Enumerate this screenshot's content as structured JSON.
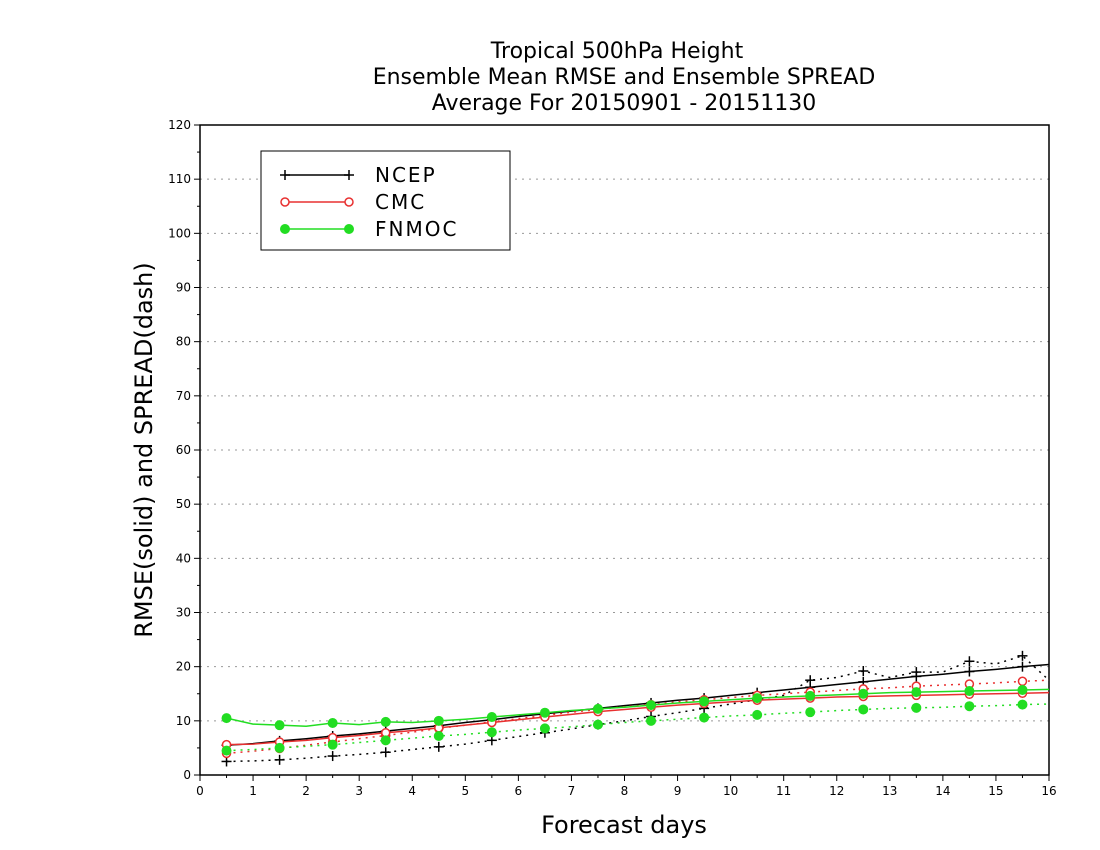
{
  "chart_data": {
    "type": "line",
    "title_lines": [
      "Tropical 500hPa Height",
      "Ensemble Mean RMSE and Ensemble SPREAD",
      "Average For 20150901 - 20151130"
    ],
    "xlabel": "Forecast days",
    "ylabel": "RMSE(solid) and SPREAD(dash)",
    "xlim": [
      0,
      16
    ],
    "ylim": [
      0,
      120
    ],
    "xticks": [
      "0",
      "1",
      "2",
      "3",
      "4",
      "5",
      "6",
      "7",
      "8",
      "9",
      "10",
      "11",
      "12",
      "13",
      "14",
      "15",
      "16"
    ],
    "yticks": [
      "0",
      "10",
      "20",
      "30",
      "40",
      "50",
      "60",
      "70",
      "80",
      "90",
      "100",
      "110",
      "120"
    ],
    "grid": true,
    "legend_placement": "top-left",
    "x": [
      0.5,
      1,
      1.5,
      2,
      2.5,
      3,
      3.5,
      4,
      4.5,
      5,
      5.5,
      6,
      6.5,
      7,
      7.5,
      8,
      8.5,
      9,
      9.5,
      10,
      10.5,
      11,
      11.5,
      12,
      12.5,
      13,
      13.5,
      14,
      14.5,
      15,
      15.5,
      16
    ],
    "series": [
      {
        "name": "NCEP",
        "color": "#000000",
        "marker": "plus",
        "rmse": [
          5.5,
          5.8,
          6.3,
          6.7,
          7.2,
          7.6,
          8.1,
          8.6,
          9.1,
          9.7,
          10.2,
          10.8,
          11.3,
          11.8,
          12.3,
          12.8,
          13.3,
          13.8,
          14.2,
          14.7,
          15.2,
          15.7,
          16.2,
          16.7,
          17.2,
          17.7,
          18.2,
          18.6,
          19.1,
          19.5,
          20.0,
          20.4
        ],
        "spread": [
          2.5,
          2.6,
          2.8,
          3.1,
          3.5,
          3.8,
          4.2,
          4.7,
          5.2,
          5.7,
          6.4,
          7.1,
          7.8,
          8.5,
          9.3,
          10.0,
          10.8,
          11.5,
          12.3,
          13.1,
          13.9,
          14.7,
          17.5,
          18.0,
          19.2,
          18.0,
          19.0,
          19.0,
          21.0,
          20.5,
          22.0,
          17.5
        ]
      },
      {
        "name": "CMC",
        "color": "#e83030",
        "marker": "open-circle",
        "rmse": [
          5.6,
          5.7,
          6.1,
          6.4,
          6.9,
          7.3,
          7.8,
          8.2,
          8.7,
          9.2,
          9.7,
          10.2,
          10.7,
          11.2,
          11.7,
          12.1,
          12.5,
          12.9,
          13.2,
          13.5,
          13.8,
          14.0,
          14.2,
          14.4,
          14.5,
          14.6,
          14.7,
          14.8,
          14.9,
          15.0,
          15.1,
          15.2
        ],
        "spread": [
          4.0,
          4.4,
          4.9,
          5.5,
          6.1,
          6.7,
          7.3,
          7.9,
          8.6,
          9.2,
          9.8,
          10.4,
          11.0,
          11.6,
          12.1,
          12.6,
          13.0,
          13.5,
          13.9,
          14.3,
          14.7,
          15.0,
          15.3,
          15.6,
          15.9,
          16.1,
          16.4,
          16.6,
          16.8,
          17.0,
          17.3,
          17.5
        ]
      },
      {
        "name": "FNMOC",
        "color": "#22dd22",
        "marker": "filled-circle",
        "rmse": [
          10.5,
          9.4,
          9.2,
          9.0,
          9.6,
          9.3,
          9.8,
          9.7,
          10.0,
          10.3,
          10.7,
          11.1,
          11.5,
          11.9,
          12.2,
          12.5,
          12.9,
          13.3,
          13.6,
          13.9,
          14.2,
          14.4,
          14.6,
          14.8,
          15.0,
          15.2,
          15.3,
          15.4,
          15.5,
          15.6,
          15.7,
          15.8
        ],
        "spread": [
          4.5,
          4.7,
          5.0,
          5.3,
          5.6,
          6.0,
          6.4,
          6.8,
          7.2,
          7.5,
          7.9,
          8.3,
          8.6,
          8.9,
          9.3,
          9.7,
          10.0,
          10.3,
          10.6,
          10.9,
          11.1,
          11.4,
          11.6,
          11.9,
          12.1,
          12.3,
          12.4,
          12.5,
          12.7,
          12.8,
          13.0,
          13.1
        ]
      }
    ]
  }
}
